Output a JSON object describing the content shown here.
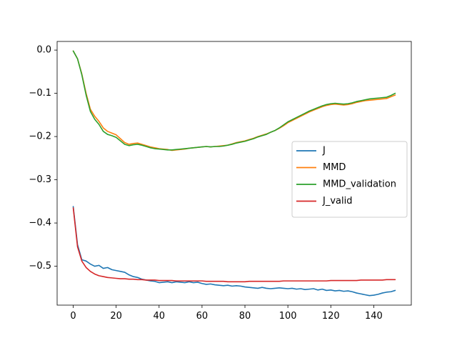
{
  "chart_data": {
    "type": "line",
    "title": "",
    "xlabel": "",
    "ylabel": "",
    "xlim": [
      -7.5,
      157.5
    ],
    "ylim": [
      -0.59,
      0.02
    ],
    "grid": false,
    "legend_position": "center-right",
    "x_ticks": [
      0,
      20,
      40,
      60,
      80,
      100,
      120,
      140
    ],
    "y_ticks": [
      0.0,
      -0.1,
      -0.2,
      -0.3,
      -0.4,
      -0.5
    ],
    "x_tick_labels": [
      "0",
      "20",
      "40",
      "60",
      "80",
      "100",
      "120",
      "140"
    ],
    "y_tick_labels": [
      "0.0",
      "−0.1",
      "−0.2",
      "−0.3",
      "−0.4",
      "−0.5"
    ],
    "series": [
      {
        "name": "J",
        "color": "#1f77b4",
        "points": [
          [
            0,
            -0.362
          ],
          [
            2,
            -0.45
          ],
          [
            4,
            -0.485
          ],
          [
            6,
            -0.488
          ],
          [
            8,
            -0.495
          ],
          [
            10,
            -0.5
          ],
          [
            12,
            -0.498
          ],
          [
            14,
            -0.505
          ],
          [
            16,
            -0.503
          ],
          [
            18,
            -0.508
          ],
          [
            20,
            -0.51
          ],
          [
            22,
            -0.512
          ],
          [
            24,
            -0.514
          ],
          [
            26,
            -0.52
          ],
          [
            28,
            -0.524
          ],
          [
            30,
            -0.526
          ],
          [
            32,
            -0.53
          ],
          [
            34,
            -0.532
          ],
          [
            36,
            -0.534
          ],
          [
            38,
            -0.535
          ],
          [
            40,
            -0.538
          ],
          [
            42,
            -0.537
          ],
          [
            44,
            -0.536
          ],
          [
            46,
            -0.538
          ],
          [
            48,
            -0.536
          ],
          [
            50,
            -0.537
          ],
          [
            52,
            -0.538
          ],
          [
            54,
            -0.536
          ],
          [
            56,
            -0.538
          ],
          [
            58,
            -0.537
          ],
          [
            60,
            -0.54
          ],
          [
            62,
            -0.542
          ],
          [
            64,
            -0.541
          ],
          [
            66,
            -0.543
          ],
          [
            68,
            -0.544
          ],
          [
            70,
            -0.545
          ],
          [
            72,
            -0.544
          ],
          [
            74,
            -0.546
          ],
          [
            76,
            -0.545
          ],
          [
            78,
            -0.546
          ],
          [
            80,
            -0.548
          ],
          [
            82,
            -0.549
          ],
          [
            84,
            -0.55
          ],
          [
            86,
            -0.551
          ],
          [
            88,
            -0.549
          ],
          [
            90,
            -0.551
          ],
          [
            92,
            -0.552
          ],
          [
            94,
            -0.551
          ],
          [
            96,
            -0.55
          ],
          [
            98,
            -0.551
          ],
          [
            100,
            -0.552
          ],
          [
            102,
            -0.551
          ],
          [
            104,
            -0.553
          ],
          [
            106,
            -0.552
          ],
          [
            108,
            -0.554
          ],
          [
            110,
            -0.553
          ],
          [
            112,
            -0.552
          ],
          [
            114,
            -0.555
          ],
          [
            116,
            -0.553
          ],
          [
            118,
            -0.556
          ],
          [
            120,
            -0.555
          ],
          [
            122,
            -0.557
          ],
          [
            124,
            -0.556
          ],
          [
            126,
            -0.558
          ],
          [
            128,
            -0.557
          ],
          [
            130,
            -0.559
          ],
          [
            132,
            -0.562
          ],
          [
            134,
            -0.564
          ],
          [
            136,
            -0.566
          ],
          [
            138,
            -0.568
          ],
          [
            140,
            -0.567
          ],
          [
            142,
            -0.565
          ],
          [
            144,
            -0.562
          ],
          [
            146,
            -0.56
          ],
          [
            148,
            -0.559
          ],
          [
            150,
            -0.556
          ]
        ]
      },
      {
        "name": "MMD",
        "color": "#ff7f0e",
        "points": [
          [
            0,
            -0.002
          ],
          [
            2,
            -0.02
          ],
          [
            4,
            -0.055
          ],
          [
            6,
            -0.1
          ],
          [
            8,
            -0.137
          ],
          [
            10,
            -0.153
          ],
          [
            12,
            -0.165
          ],
          [
            14,
            -0.18
          ],
          [
            16,
            -0.188
          ],
          [
            18,
            -0.192
          ],
          [
            20,
            -0.196
          ],
          [
            22,
            -0.205
          ],
          [
            24,
            -0.214
          ],
          [
            26,
            -0.218
          ],
          [
            28,
            -0.216
          ],
          [
            30,
            -0.215
          ],
          [
            32,
            -0.218
          ],
          [
            34,
            -0.221
          ],
          [
            36,
            -0.224
          ],
          [
            38,
            -0.226
          ],
          [
            40,
            -0.228
          ],
          [
            42,
            -0.229
          ],
          [
            44,
            -0.23
          ],
          [
            46,
            -0.232
          ],
          [
            48,
            -0.231
          ],
          [
            50,
            -0.23
          ],
          [
            52,
            -0.229
          ],
          [
            54,
            -0.227
          ],
          [
            56,
            -0.226
          ],
          [
            58,
            -0.225
          ],
          [
            60,
            -0.224
          ],
          [
            62,
            -0.223
          ],
          [
            64,
            -0.224
          ],
          [
            66,
            -0.223
          ],
          [
            68,
            -0.222
          ],
          [
            70,
            -0.221
          ],
          [
            72,
            -0.22
          ],
          [
            74,
            -0.217
          ],
          [
            76,
            -0.214
          ],
          [
            78,
            -0.212
          ],
          [
            80,
            -0.21
          ],
          [
            82,
            -0.207
          ],
          [
            84,
            -0.204
          ],
          [
            86,
            -0.2
          ],
          [
            88,
            -0.197
          ],
          [
            90,
            -0.194
          ],
          [
            92,
            -0.19
          ],
          [
            94,
            -0.186
          ],
          [
            96,
            -0.181
          ],
          [
            98,
            -0.175
          ],
          [
            100,
            -0.168
          ],
          [
            102,
            -0.163
          ],
          [
            104,
            -0.158
          ],
          [
            106,
            -0.153
          ],
          [
            108,
            -0.148
          ],
          [
            110,
            -0.143
          ],
          [
            112,
            -0.139
          ],
          [
            114,
            -0.135
          ],
          [
            116,
            -0.131
          ],
          [
            118,
            -0.128
          ],
          [
            120,
            -0.126
          ],
          [
            122,
            -0.125
          ],
          [
            124,
            -0.126
          ],
          [
            126,
            -0.127
          ],
          [
            128,
            -0.126
          ],
          [
            130,
            -0.124
          ],
          [
            132,
            -0.121
          ],
          [
            134,
            -0.119
          ],
          [
            136,
            -0.117
          ],
          [
            138,
            -0.116
          ],
          [
            140,
            -0.115
          ],
          [
            142,
            -0.114
          ],
          [
            144,
            -0.113
          ],
          [
            146,
            -0.112
          ],
          [
            148,
            -0.108
          ],
          [
            150,
            -0.104
          ]
        ]
      },
      {
        "name": "MMD_validation",
        "color": "#2ca02c",
        "points": [
          [
            0,
            -0.002
          ],
          [
            2,
            -0.02
          ],
          [
            4,
            -0.057
          ],
          [
            6,
            -0.104
          ],
          [
            8,
            -0.142
          ],
          [
            10,
            -0.16
          ],
          [
            12,
            -0.172
          ],
          [
            14,
            -0.188
          ],
          [
            16,
            -0.195
          ],
          [
            18,
            -0.198
          ],
          [
            20,
            -0.202
          ],
          [
            22,
            -0.21
          ],
          [
            24,
            -0.218
          ],
          [
            26,
            -0.221
          ],
          [
            28,
            -0.219
          ],
          [
            30,
            -0.218
          ],
          [
            32,
            -0.22
          ],
          [
            34,
            -0.223
          ],
          [
            36,
            -0.226
          ],
          [
            38,
            -0.228
          ],
          [
            40,
            -0.229
          ],
          [
            42,
            -0.23
          ],
          [
            44,
            -0.231
          ],
          [
            46,
            -0.231
          ],
          [
            48,
            -0.23
          ],
          [
            50,
            -0.229
          ],
          [
            52,
            -0.228
          ],
          [
            54,
            -0.227
          ],
          [
            56,
            -0.226
          ],
          [
            58,
            -0.225
          ],
          [
            60,
            -0.224
          ],
          [
            62,
            -0.223
          ],
          [
            64,
            -0.224
          ],
          [
            66,
            -0.223
          ],
          [
            68,
            -0.223
          ],
          [
            70,
            -0.222
          ],
          [
            72,
            -0.22
          ],
          [
            74,
            -0.218
          ],
          [
            76,
            -0.215
          ],
          [
            78,
            -0.213
          ],
          [
            80,
            -0.211
          ],
          [
            82,
            -0.208
          ],
          [
            84,
            -0.205
          ],
          [
            86,
            -0.201
          ],
          [
            88,
            -0.198
          ],
          [
            90,
            -0.195
          ],
          [
            92,
            -0.19
          ],
          [
            94,
            -0.186
          ],
          [
            96,
            -0.18
          ],
          [
            98,
            -0.173
          ],
          [
            100,
            -0.166
          ],
          [
            102,
            -0.161
          ],
          [
            104,
            -0.156
          ],
          [
            106,
            -0.151
          ],
          [
            108,
            -0.146
          ],
          [
            110,
            -0.141
          ],
          [
            112,
            -0.137
          ],
          [
            114,
            -0.133
          ],
          [
            116,
            -0.129
          ],
          [
            118,
            -0.126
          ],
          [
            120,
            -0.124
          ],
          [
            122,
            -0.123
          ],
          [
            124,
            -0.124
          ],
          [
            126,
            -0.125
          ],
          [
            128,
            -0.124
          ],
          [
            130,
            -0.122
          ],
          [
            132,
            -0.119
          ],
          [
            134,
            -0.117
          ],
          [
            136,
            -0.115
          ],
          [
            138,
            -0.113
          ],
          [
            140,
            -0.112
          ],
          [
            142,
            -0.111
          ],
          [
            144,
            -0.11
          ],
          [
            146,
            -0.109
          ],
          [
            148,
            -0.105
          ],
          [
            150,
            -0.1
          ]
        ]
      },
      {
        "name": "J_valid",
        "color": "#d62728",
        "points": [
          [
            0,
            -0.365
          ],
          [
            2,
            -0.455
          ],
          [
            4,
            -0.488
          ],
          [
            6,
            -0.503
          ],
          [
            8,
            -0.512
          ],
          [
            10,
            -0.518
          ],
          [
            12,
            -0.522
          ],
          [
            14,
            -0.524
          ],
          [
            16,
            -0.526
          ],
          [
            18,
            -0.527
          ],
          [
            20,
            -0.528
          ],
          [
            22,
            -0.529
          ],
          [
            24,
            -0.529
          ],
          [
            26,
            -0.53
          ],
          [
            28,
            -0.53
          ],
          [
            30,
            -0.531
          ],
          [
            32,
            -0.531
          ],
          [
            34,
            -0.532
          ],
          [
            36,
            -0.532
          ],
          [
            38,
            -0.532
          ],
          [
            40,
            -0.533
          ],
          [
            42,
            -0.533
          ],
          [
            44,
            -0.533
          ],
          [
            46,
            -0.533
          ],
          [
            48,
            -0.534
          ],
          [
            50,
            -0.534
          ],
          [
            52,
            -0.534
          ],
          [
            54,
            -0.534
          ],
          [
            56,
            -0.534
          ],
          [
            58,
            -0.534
          ],
          [
            60,
            -0.534
          ],
          [
            62,
            -0.535
          ],
          [
            64,
            -0.535
          ],
          [
            66,
            -0.535
          ],
          [
            68,
            -0.535
          ],
          [
            70,
            -0.535
          ],
          [
            72,
            -0.536
          ],
          [
            74,
            -0.536
          ],
          [
            76,
            -0.536
          ],
          [
            78,
            -0.536
          ],
          [
            80,
            -0.536
          ],
          [
            82,
            -0.535
          ],
          [
            84,
            -0.535
          ],
          [
            86,
            -0.535
          ],
          [
            88,
            -0.535
          ],
          [
            90,
            -0.535
          ],
          [
            92,
            -0.535
          ],
          [
            94,
            -0.535
          ],
          [
            96,
            -0.535
          ],
          [
            98,
            -0.534
          ],
          [
            100,
            -0.534
          ],
          [
            102,
            -0.534
          ],
          [
            104,
            -0.534
          ],
          [
            106,
            -0.534
          ],
          [
            108,
            -0.534
          ],
          [
            110,
            -0.534
          ],
          [
            112,
            -0.534
          ],
          [
            114,
            -0.534
          ],
          [
            116,
            -0.534
          ],
          [
            118,
            -0.534
          ],
          [
            120,
            -0.533
          ],
          [
            122,
            -0.533
          ],
          [
            124,
            -0.533
          ],
          [
            126,
            -0.533
          ],
          [
            128,
            -0.533
          ],
          [
            130,
            -0.533
          ],
          [
            132,
            -0.533
          ],
          [
            134,
            -0.532
          ],
          [
            136,
            -0.532
          ],
          [
            138,
            -0.532
          ],
          [
            140,
            -0.532
          ],
          [
            142,
            -0.532
          ],
          [
            144,
            -0.532
          ],
          [
            146,
            -0.531
          ],
          [
            148,
            -0.531
          ],
          [
            150,
            -0.531
          ]
        ]
      }
    ]
  }
}
